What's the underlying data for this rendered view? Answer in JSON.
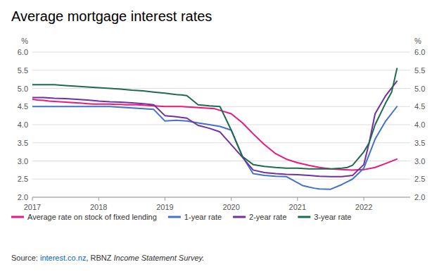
{
  "chart_data": {
    "type": "line",
    "title": "Average mortgage interest rates",
    "y_label": "%",
    "y2_label": "%",
    "xlim": [
      2017.0,
      2022.7
    ],
    "xticks": [
      2017,
      2018,
      2019,
      2020,
      2021,
      2022
    ],
    "ylim": [
      2.0,
      6.0
    ],
    "yticks": [
      {
        "value": 2.0,
        "label": "2.0"
      },
      2.5,
      {
        "value": 3.0,
        "label": "3.0"
      },
      3.5,
      {
        "value": 4.0,
        "label": "4.0"
      },
      4.5,
      {
        "value": 5.0,
        "label": "5.0"
      },
      5.5,
      {
        "value": 6.0,
        "label": "6.0"
      }
    ],
    "y2lim": [
      2.0,
      6.0
    ],
    "y2ticks": [
      {
        "value": 2.0,
        "label": "2.0"
      },
      2.5,
      {
        "value": 3.0,
        "label": "3.0"
      },
      3.5,
      {
        "value": 4.0,
        "label": "4.0"
      },
      4.5,
      {
        "value": 5.0,
        "label": "5.0"
      },
      5.5,
      {
        "value": 6.0,
        "label": "6.0"
      }
    ],
    "grid": true,
    "legend": "bottom",
    "series": [
      {
        "name": "Average rate on stock of fixed lending",
        "color": "#e8197f",
        "x": [
          2017.0,
          2017.08,
          2017.17,
          2017.25,
          2017.33,
          2017.42,
          2017.5,
          2017.58,
          2017.67,
          2017.75,
          2017.83,
          2017.92,
          2018.0,
          2018.08,
          2018.17,
          2018.25,
          2018.33,
          2018.42,
          2018.5,
          2018.58,
          2018.67,
          2018.75,
          2018.83,
          2018.92,
          2019.0,
          2019.08,
          2019.17,
          2019.25,
          2019.33,
          2019.42,
          2019.5,
          2019.58,
          2019.67,
          2019.75,
          2020.0,
          2020.17,
          2020.33,
          2020.5,
          2020.67,
          2020.83,
          2021.0,
          2021.17,
          2021.33,
          2021.5,
          2021.67,
          2021.83,
          2022.0,
          2022.17,
          2022.33,
          2022.5
        ],
        "values": [
          4.7,
          4.68,
          4.67,
          4.65,
          4.64,
          4.63,
          4.62,
          4.61,
          4.6,
          4.59,
          4.58,
          4.57,
          4.57,
          4.57,
          4.57,
          4.56,
          4.56,
          4.55,
          4.55,
          4.55,
          4.54,
          4.53,
          4.52,
          4.51,
          4.5,
          4.5,
          4.5,
          4.5,
          4.49,
          4.48,
          4.47,
          4.46,
          4.45,
          4.44,
          4.3,
          4.05,
          3.75,
          3.45,
          3.2,
          3.05,
          2.95,
          2.88,
          2.82,
          2.78,
          2.76,
          2.75,
          2.76,
          2.82,
          2.93,
          3.05
        ]
      },
      {
        "name": "1-year rate",
        "color": "#4472c4",
        "x": [
          2017.0,
          2017.17,
          2017.33,
          2017.5,
          2017.67,
          2017.83,
          2018.0,
          2018.17,
          2018.33,
          2018.5,
          2018.67,
          2018.83,
          2019.0,
          2019.17,
          2019.33,
          2019.5,
          2019.67,
          2019.83,
          2020.0,
          2020.08,
          2020.17,
          2020.33,
          2020.5,
          2020.67,
          2020.83,
          2021.0,
          2021.08,
          2021.17,
          2021.25,
          2021.33,
          2021.5,
          2021.67,
          2021.83,
          2022.0,
          2022.17,
          2022.33,
          2022.5
        ],
        "values": [
          4.5,
          4.5,
          4.5,
          4.5,
          4.5,
          4.5,
          4.5,
          4.5,
          4.48,
          4.46,
          4.44,
          4.42,
          4.1,
          4.12,
          4.1,
          4.05,
          4.0,
          3.95,
          3.85,
          3.5,
          3.12,
          2.65,
          2.6,
          2.58,
          2.57,
          2.4,
          2.32,
          2.28,
          2.25,
          2.23,
          2.22,
          2.35,
          2.5,
          2.8,
          3.6,
          4.1,
          4.5
        ]
      },
      {
        "name": "2-year rate",
        "color": "#7030a0",
        "x": [
          2017.0,
          2017.17,
          2017.33,
          2017.5,
          2017.67,
          2017.83,
          2018.0,
          2018.17,
          2018.33,
          2018.5,
          2018.67,
          2018.83,
          2019.0,
          2019.17,
          2019.33,
          2019.5,
          2019.67,
          2019.83,
          2020.0,
          2020.17,
          2020.33,
          2020.5,
          2020.67,
          2020.83,
          2021.0,
          2021.17,
          2021.33,
          2021.5,
          2021.67,
          2021.83,
          2022.0,
          2022.08,
          2022.17,
          2022.33,
          2022.5
        ],
        "values": [
          4.75,
          4.75,
          4.73,
          4.72,
          4.7,
          4.68,
          4.65,
          4.63,
          4.62,
          4.6,
          4.58,
          4.55,
          4.25,
          4.22,
          4.18,
          3.98,
          3.9,
          3.8,
          3.45,
          3.1,
          2.75,
          2.68,
          2.65,
          2.63,
          2.62,
          2.6,
          2.58,
          2.57,
          2.57,
          2.6,
          2.9,
          3.5,
          4.3,
          4.8,
          5.2
        ]
      },
      {
        "name": "3-year rate",
        "color": "#1f6b4e",
        "x": [
          2017.0,
          2017.17,
          2017.33,
          2017.5,
          2017.67,
          2017.83,
          2018.0,
          2018.17,
          2018.33,
          2018.5,
          2018.67,
          2018.83,
          2019.0,
          2019.08,
          2019.17,
          2019.25,
          2019.33,
          2019.5,
          2019.67,
          2019.83,
          2020.0,
          2020.17,
          2020.33,
          2020.5,
          2020.67,
          2020.83,
          2021.0,
          2021.17,
          2021.33,
          2021.5,
          2021.67,
          2021.75,
          2021.83,
          2022.0,
          2022.08,
          2022.17,
          2022.33,
          2022.42,
          2022.5
        ],
        "values": [
          5.1,
          5.1,
          5.1,
          5.08,
          5.06,
          5.04,
          5.02,
          5.0,
          4.98,
          4.95,
          4.93,
          4.9,
          4.87,
          4.85,
          4.83,
          4.82,
          4.8,
          4.55,
          4.52,
          4.5,
          3.85,
          3.12,
          2.9,
          2.85,
          2.82,
          2.8,
          2.8,
          2.78,
          2.78,
          2.78,
          2.8,
          2.82,
          2.88,
          3.25,
          3.5,
          4.0,
          4.6,
          4.9,
          5.55
        ]
      }
    ],
    "source": [
      {
        "text": "Source: "
      },
      {
        "text": "interest.co.nz",
        "color": "#0563c1"
      },
      {
        "text": ", RBNZ "
      },
      {
        "text": "Income Statement Survey."
      }
    ]
  }
}
